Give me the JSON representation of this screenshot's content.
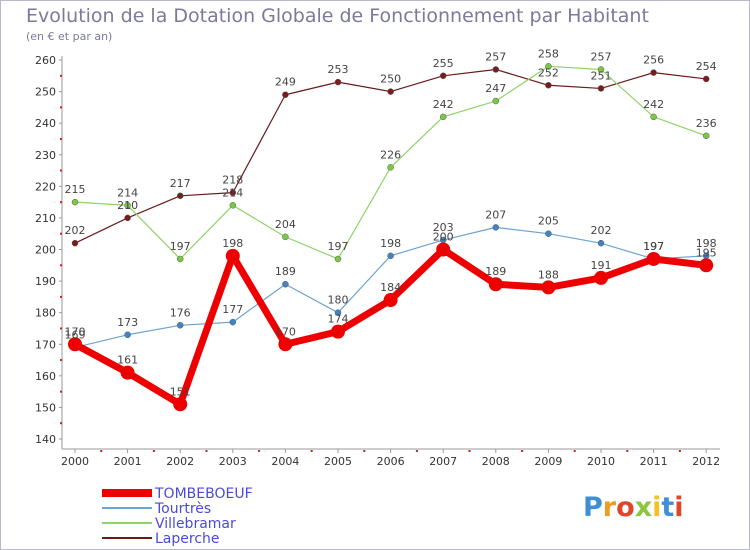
{
  "title": "Evolution de la Dotation Globale de Fonctionnement par Habitant",
  "subtitle": "(en € et par an)",
  "logo": "Proxiti",
  "chart_data": {
    "type": "line",
    "title": "Evolution de la Dotation Globale de Fonctionnement par Habitant",
    "ylabel": "(en € et par an)",
    "xlabel": "",
    "ylim": [
      140,
      260
    ],
    "yticks": [
      140,
      150,
      160,
      170,
      180,
      190,
      200,
      210,
      220,
      230,
      240,
      250,
      260
    ],
    "grid": false,
    "legend": "bottom-left",
    "categories": [
      "2000",
      "2001",
      "2002",
      "2003",
      "2004",
      "2005",
      "2006",
      "2007",
      "2008",
      "2009",
      "2010",
      "2011",
      "2012"
    ],
    "series": [
      {
        "name": "Laperche",
        "color": "#6b1a1a",
        "point_color": "#7a1c1c",
        "width": 1.2,
        "marker": 3,
        "values": [
          202,
          210,
          217,
          218,
          249,
          253,
          250,
          255,
          257,
          252,
          251,
          256,
          254
        ]
      },
      {
        "name": "Villebramar",
        "color": "#8ed467",
        "point_color": "#7ac943",
        "width": 1.2,
        "marker": 3,
        "values": [
          215,
          214,
          197,
          214,
          204,
          197,
          226,
          242,
          247,
          258,
          257,
          242,
          236
        ]
      },
      {
        "name": "Tourtrès",
        "color": "#6fa3d1",
        "point_color": "#3f85c6",
        "width": 1.2,
        "marker": 3,
        "values": [
          169,
          173,
          176,
          177,
          189,
          180,
          198,
          203,
          207,
          205,
          202,
          197,
          198
        ]
      },
      {
        "name": "TOMBEBOEUF",
        "color": "#ee0000",
        "point_color": "#ee0000",
        "width": 7,
        "marker": 7,
        "values": [
          170,
          161,
          151,
          198,
          170,
          174,
          184,
          200,
          189,
          188,
          191,
          197,
          195
        ]
      }
    ],
    "legend_entries": [
      "TOMBEBOEUF",
      "Tourtrès",
      "Villebramar",
      "Laperche"
    ],
    "legend_text_color": "#4b4bd6"
  }
}
